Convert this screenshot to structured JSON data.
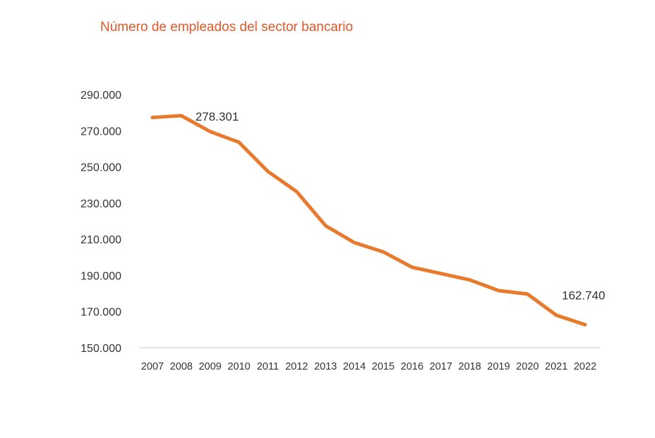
{
  "chart_data": {
    "type": "line",
    "title": "Número de empleados del sector bancario",
    "xlabel": "",
    "ylabel": "",
    "categories": [
      "2007",
      "2008",
      "2009",
      "2010",
      "2011",
      "2012",
      "2013",
      "2014",
      "2015",
      "2016",
      "2017",
      "2018",
      "2019",
      "2020",
      "2021",
      "2022"
    ],
    "series": [
      {
        "values": [
          277300,
          278301,
          269500,
          263600,
          247500,
          236300,
          217500,
          208100,
          203000,
          194500,
          191000,
          187500,
          181600,
          179700,
          168000,
          162740
        ],
        "color": "#e87a2e"
      }
    ],
    "data_labels": [
      {
        "category": "2008",
        "text": "278.301"
      },
      {
        "category": "2022",
        "text": "162.740"
      }
    ],
    "ylim": [
      150000,
      290000
    ],
    "yticks": [
      150000,
      170000,
      190000,
      210000,
      230000,
      250000,
      270000,
      290000
    ],
    "ytick_labels": [
      "150.000",
      "170.000",
      "190.000",
      "210.000",
      "230.000",
      "250.000",
      "270.000",
      "290.000"
    ],
    "grid": false,
    "legend": "none",
    "title_color": "#e0592a"
  }
}
